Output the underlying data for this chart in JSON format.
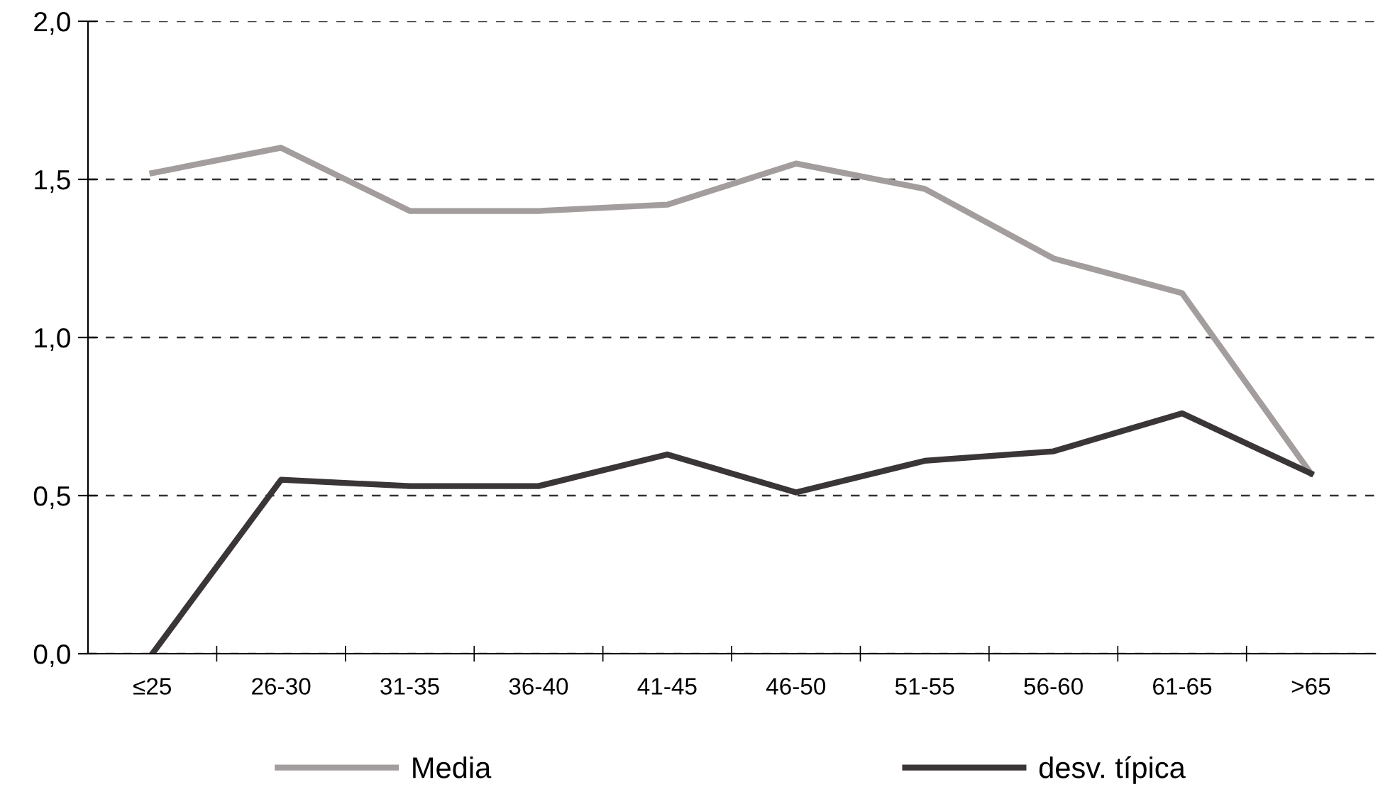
{
  "chart_data": {
    "type": "line",
    "categories": [
      "≤25",
      "26-30",
      "31-35",
      "36-40",
      "41-45",
      "46-50",
      "51-55",
      "56-60",
      "61-65",
      ">65"
    ],
    "series": [
      {
        "name": "Media",
        "color": "#a39d9d",
        "values": [
          1.52,
          1.6,
          1.4,
          1.4,
          1.42,
          1.55,
          1.47,
          1.25,
          1.14,
          0.57
        ]
      },
      {
        "name": "desv. típica",
        "color": "#3a3536",
        "values": [
          0.0,
          0.55,
          0.53,
          0.53,
          0.63,
          0.51,
          0.61,
          0.64,
          0.76,
          0.57
        ]
      }
    ],
    "ylim": [
      0,
      2
    ],
    "yticks": [
      {
        "value": 0,
        "label": "0,0"
      },
      {
        "value": 0.5,
        "label": "0,5"
      },
      {
        "value": 1,
        "label": "1,0"
      },
      {
        "value": 1.5,
        "label": "1,5"
      },
      {
        "value": 2,
        "label": "2,0"
      }
    ],
    "grid": "y",
    "legend": "bottom",
    "marker": "none",
    "line_style": "solid"
  }
}
